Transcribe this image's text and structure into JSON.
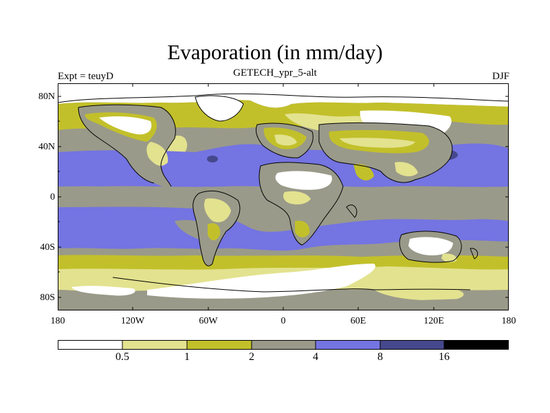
{
  "title": "Evaporation (in mm/day)",
  "subtitle": "GETECH_ypr_5-alt",
  "left_label": "Expt = teuyD",
  "right_label": "DJF",
  "lat_labels": [
    "80N",
    "40N",
    "0",
    "40S",
    "80S"
  ],
  "lon_labels": [
    "180",
    "120W",
    "60W",
    "0",
    "60E",
    "120E",
    "180"
  ],
  "colorbar": {
    "levels": [
      "0.5",
      "1",
      "2",
      "4",
      "8",
      "16"
    ],
    "colors": [
      "#ffffff",
      "#e3e28f",
      "#c2c02a",
      "#9a9a8a",
      "#7474e2",
      "#46488d",
      "#000000"
    ]
  },
  "map_colors": {
    "lt05": "#ffffff",
    "c05_1": "#e3e28f",
    "c1_2": "#c2c02a",
    "c2_4": "#9a9a8a",
    "c4_8": "#7474e2",
    "c8_16": "#46488d"
  }
}
